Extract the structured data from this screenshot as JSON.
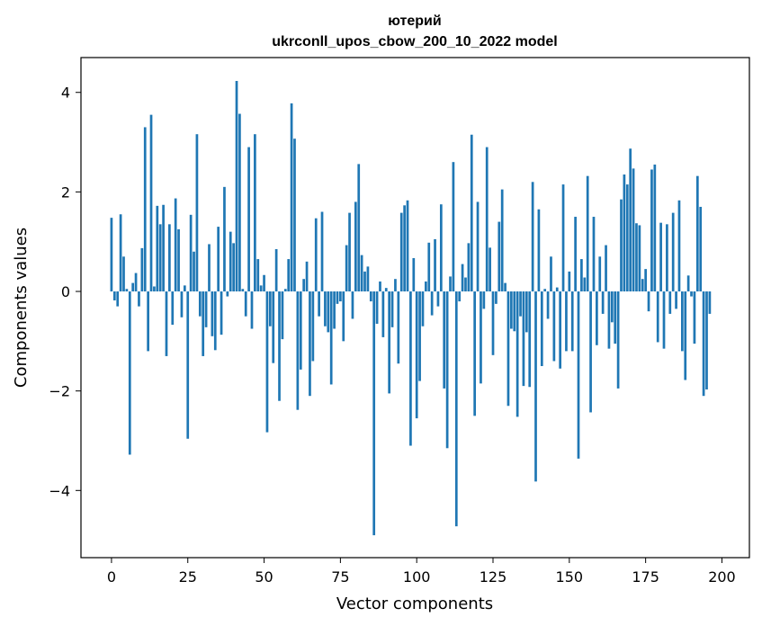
{
  "chart_data": {
    "type": "bar",
    "title": "ютерий",
    "subtitle": "ukrconll_upos_cbow_200_10_2022 model",
    "xlabel": "Vector components",
    "ylabel": "Components values",
    "xlim": [
      -10,
      209
    ],
    "ylim": [
      -5.35,
      4.7
    ],
    "xticks": [
      0,
      25,
      50,
      75,
      100,
      125,
      150,
      175,
      200
    ],
    "yticks": [
      -4,
      -2,
      0,
      2,
      4
    ],
    "xtick_labels": [
      "0",
      "25",
      "50",
      "75",
      "100",
      "125",
      "150",
      "175",
      "200"
    ],
    "ytick_labels": [
      "−4",
      "−2",
      "0",
      "2",
      "4"
    ],
    "bar_color": "#1f77b4",
    "grid": false,
    "legend": "none",
    "values": [
      1.48,
      -0.18,
      -0.3,
      1.55,
      0.7,
      0.05,
      -3.28,
      0.17,
      0.37,
      -0.3,
      0.87,
      3.3,
      -1.2,
      3.55,
      0.1,
      1.72,
      1.35,
      1.74,
      -1.3,
      1.35,
      -0.67,
      1.87,
      1.25,
      -0.52,
      0.12,
      -2.96,
      1.54,
      0.8,
      3.16,
      -0.5,
      -1.3,
      -0.72,
      0.95,
      -0.9,
      -1.18,
      1.3,
      -0.87,
      2.1,
      -0.1,
      1.2,
      0.97,
      4.23,
      3.57,
      0.05,
      -0.5,
      2.9,
      -0.75,
      3.16,
      0.65,
      0.12,
      0.33,
      -2.83,
      -0.7,
      -1.44,
      0.85,
      -2.2,
      -0.96,
      0.05,
      0.65,
      3.78,
      3.07,
      -2.38,
      -1.57,
      0.25,
      0.6,
      -2.1,
      -1.4,
      1.47,
      -0.5,
      1.6,
      -0.7,
      -0.82,
      -1.87,
      -0.75,
      -0.25,
      -0.2,
      -1.0,
      0.93,
      1.58,
      -0.55,
      1.8,
      2.56,
      0.73,
      0.4,
      0.5,
      -0.2,
      -4.9,
      -0.65,
      0.2,
      -0.92,
      0.07,
      -2.05,
      -0.72,
      0.25,
      -1.45,
      1.58,
      1.73,
      1.83,
      -3.1,
      0.67,
      -2.55,
      -1.8,
      -0.7,
      0.2,
      0.98,
      -0.48,
      1.05,
      -0.3,
      1.75,
      -1.95,
      -3.15,
      0.3,
      2.6,
      -4.72,
      -0.2,
      0.55,
      0.28,
      0.97,
      3.15,
      -2.5,
      1.8,
      -1.85,
      -0.35,
      2.9,
      0.88,
      -1.28,
      -0.25,
      1.4,
      2.05,
      0.17,
      -2.3,
      -0.75,
      -0.8,
      -2.52,
      -0.5,
      -1.9,
      -0.82,
      -1.92,
      2.2,
      -3.82,
      1.65,
      -1.5,
      0.05,
      -0.55,
      0.7,
      -1.4,
      0.08,
      -1.55,
      2.15,
      -1.2,
      0.4,
      -1.2,
      1.5,
      -3.36,
      0.65,
      0.28,
      2.32,
      -2.43,
      1.5,
      -1.08,
      0.7,
      -0.45,
      0.93,
      -1.15,
      -0.62,
      -1.05,
      -1.95,
      1.85,
      2.35,
      2.15,
      2.87,
      2.47,
      1.37,
      1.33,
      0.25,
      0.45,
      -0.4,
      2.45,
      2.55,
      -1.02,
      1.38,
      -1.15,
      1.35,
      -0.45,
      1.58,
      -0.35,
      1.83,
      -1.2,
      -1.78,
      0.32,
      -0.1,
      -1.05,
      2.32,
      1.7,
      -2.1,
      -1.97,
      -0.45
    ]
  }
}
